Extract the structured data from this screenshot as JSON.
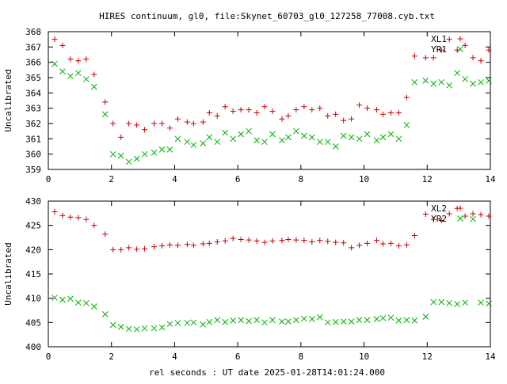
{
  "title": "HIRES continuum, gl0, file:Skynet_60703_gl0_127258_77008.cyb.txt",
  "xlabel": "rel seconds : UT date 2025-01-28T14:01:24.000",
  "colors": {
    "red": "#cc0000",
    "green": "#00b000",
    "axis": "#000000"
  },
  "chart_data": [
    {
      "type": "scatter",
      "ylabel": "Uncalibrated",
      "xlim": [
        0,
        14
      ],
      "ylim": [
        359,
        368
      ],
      "x_ticks": [
        0,
        2,
        4,
        6,
        8,
        10,
        12,
        14
      ],
      "y_ticks": [
        359,
        360,
        361,
        362,
        363,
        364,
        365,
        366,
        367,
        368
      ],
      "legend": "top-right",
      "series": [
        {
          "name": "XL1",
          "marker": "plus",
          "color": "#cc0000",
          "x": [
            0.2,
            0.45,
            0.7,
            0.95,
            1.2,
            1.45,
            1.8,
            2.05,
            2.3,
            2.55,
            2.8,
            3.05,
            3.35,
            3.6,
            3.85,
            4.1,
            4.4,
            4.6,
            4.9,
            5.1,
            5.35,
            5.6,
            5.85,
            6.1,
            6.35,
            6.6,
            6.85,
            7.1,
            7.4,
            7.6,
            7.85,
            8.1,
            8.35,
            8.6,
            8.85,
            9.1,
            9.35,
            9.6,
            9.85,
            10.1,
            10.4,
            10.6,
            10.85,
            11.1,
            11.35,
            11.6,
            11.95,
            12.2,
            12.45,
            12.7,
            12.95,
            13.2,
            13.45,
            13.7,
            13.95
          ],
          "y": [
            367.5,
            367.1,
            366.2,
            366.1,
            366.2,
            365.2,
            363.4,
            362,
            361.1,
            362,
            361.9,
            361.6,
            362,
            362,
            361.7,
            362.3,
            362.1,
            362,
            362.1,
            362.7,
            362.5,
            363.1,
            362.8,
            362.9,
            362.9,
            362.7,
            363.1,
            362.8,
            362.3,
            362.5,
            362.9,
            363.1,
            362.9,
            363,
            362.5,
            362.6,
            362.2,
            362.3,
            363.2,
            363,
            362.9,
            362.6,
            362.7,
            362.7,
            363.7,
            366.4,
            366.3,
            366.3,
            366.8,
            367.5,
            366.8,
            367.1,
            366.3,
            366.1,
            366.8
          ]
        },
        {
          "name": "YR1",
          "marker": "cross",
          "color": "#00b000",
          "x": [
            0.2,
            0.45,
            0.7,
            0.95,
            1.2,
            1.45,
            1.8,
            2.05,
            2.3,
            2.55,
            2.8,
            3.05,
            3.35,
            3.6,
            3.85,
            4.1,
            4.4,
            4.6,
            4.9,
            5.1,
            5.35,
            5.6,
            5.85,
            6.1,
            6.35,
            6.6,
            6.85,
            7.1,
            7.4,
            7.6,
            7.85,
            8.1,
            8.35,
            8.6,
            8.85,
            9.1,
            9.35,
            9.6,
            9.85,
            10.1,
            10.4,
            10.6,
            10.85,
            11.1,
            11.35,
            11.6,
            11.95,
            12.2,
            12.45,
            12.7,
            12.95,
            13.2,
            13.45,
            13.7,
            13.95
          ],
          "y": [
            365.9,
            365.4,
            365.1,
            365.3,
            364.9,
            364.4,
            362.6,
            360,
            359.9,
            359.5,
            359.7,
            360,
            360.1,
            360.3,
            360.3,
            361,
            360.8,
            360.6,
            360.7,
            361.1,
            360.8,
            361.4,
            361,
            361.3,
            361.5,
            360.9,
            360.8,
            361.3,
            360.9,
            361.1,
            361.5,
            361.2,
            361.1,
            360.8,
            360.8,
            360.5,
            361.2,
            361.1,
            361,
            361.3,
            360.9,
            361.1,
            361.3,
            361,
            361.9,
            364.7,
            364.8,
            364.6,
            364.7,
            364.5,
            365.3,
            364.9,
            364.6,
            364.7,
            364.8
          ]
        }
      ]
    },
    {
      "type": "scatter",
      "ylabel": "Uncalibrated",
      "xlim": [
        0,
        14
      ],
      "ylim": [
        400,
        430
      ],
      "x_ticks": [
        0,
        2,
        4,
        6,
        8,
        10,
        12,
        14
      ],
      "y_ticks": [
        400,
        405,
        410,
        415,
        420,
        425,
        430
      ],
      "legend": "top-right",
      "series": [
        {
          "name": "XL2",
          "marker": "plus",
          "color": "#cc0000",
          "x": [
            0.2,
            0.45,
            0.7,
            0.95,
            1.2,
            1.45,
            1.8,
            2.05,
            2.3,
            2.55,
            2.8,
            3.05,
            3.35,
            3.6,
            3.85,
            4.1,
            4.4,
            4.6,
            4.9,
            5.1,
            5.35,
            5.6,
            5.85,
            6.1,
            6.35,
            6.6,
            6.85,
            7.1,
            7.4,
            7.6,
            7.85,
            8.1,
            8.35,
            8.6,
            8.85,
            9.1,
            9.35,
            9.6,
            9.85,
            10.1,
            10.4,
            10.6,
            10.85,
            11.1,
            11.35,
            11.6,
            11.95,
            12.2,
            12.45,
            12.7,
            12.95,
            13.2,
            13.45,
            13.7,
            13.95
          ],
          "y": [
            427.8,
            427,
            426.7,
            426.6,
            426.2,
            425,
            423.2,
            420,
            420,
            420.4,
            420.1,
            420.2,
            420.6,
            420.8,
            421,
            420.9,
            421.1,
            420.9,
            421.2,
            421.3,
            421.6,
            421.8,
            422.3,
            422.1,
            422,
            421.8,
            421.5,
            421.8,
            421.9,
            422.1,
            422,
            421.9,
            421.6,
            421.9,
            421.7,
            421.5,
            421.4,
            420.4,
            420.9,
            421.3,
            421.9,
            421.2,
            421.3,
            420.8,
            421,
            422.9,
            427.3,
            426.2,
            426,
            427.4,
            428.5,
            426.9,
            427.4,
            427.2,
            426.9
          ]
        },
        {
          "name": "YR2",
          "marker": "cross",
          "color": "#00b000",
          "x": [
            0.2,
            0.45,
            0.7,
            0.95,
            1.2,
            1.45,
            1.8,
            2.05,
            2.3,
            2.55,
            2.8,
            3.05,
            3.35,
            3.6,
            3.85,
            4.1,
            4.4,
            4.6,
            4.9,
            5.1,
            5.35,
            5.6,
            5.85,
            6.1,
            6.35,
            6.6,
            6.85,
            7.1,
            7.4,
            7.6,
            7.85,
            8.1,
            8.35,
            8.6,
            8.85,
            9.1,
            9.35,
            9.6,
            9.85,
            10.1,
            10.4,
            10.6,
            10.85,
            11.1,
            11.35,
            11.6,
            11.95,
            12.2,
            12.45,
            12.7,
            12.95,
            13.2,
            13.45,
            13.7,
            13.95
          ],
          "y": [
            410.1,
            409.7,
            409.9,
            409.1,
            409,
            408.3,
            406.7,
            404.5,
            404.1,
            403.7,
            403.6,
            403.8,
            403.8,
            404,
            404.7,
            404.9,
            404.9,
            405,
            404.6,
            405.1,
            405.5,
            405.1,
            405.4,
            405.5,
            405.3,
            405.5,
            405,
            405.5,
            405.2,
            405.2,
            405.5,
            405.8,
            405.7,
            406.1,
            405,
            405.1,
            405.2,
            405.2,
            405.5,
            405.5,
            405.7,
            405.9,
            406,
            405.4,
            405.5,
            405.4,
            406.2,
            409.2,
            409.2,
            409,
            408.8,
            409.1,
            426.3,
            409.1,
            408.9
          ]
        }
      ]
    }
  ]
}
